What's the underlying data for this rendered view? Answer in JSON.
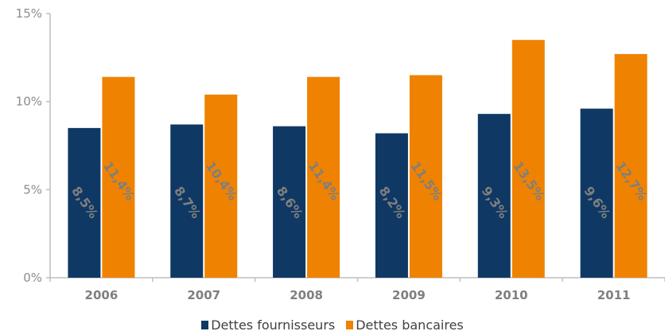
{
  "chart_data": {
    "type": "bar",
    "categories": [
      "2006",
      "2007",
      "2008",
      "2009",
      "2010",
      "2011"
    ],
    "series": [
      {
        "name": "Dettes fournisseurs",
        "values": [
          8.5,
          8.7,
          8.6,
          8.2,
          9.3,
          9.6
        ],
        "labels": [
          "8,5%",
          "8,7%",
          "8,6%",
          "8,2%",
          "9,3%",
          "9,6%"
        ],
        "color": "#0f3864"
      },
      {
        "name": "Dettes bancaires",
        "values": [
          11.4,
          10.4,
          11.4,
          11.5,
          13.5,
          12.7
        ],
        "labels": [
          "11,4%",
          "10,4%",
          "11,4%",
          "11,5%",
          "13,5%",
          "12,7%"
        ],
        "color": "#ef8200"
      }
    ],
    "y_ticks": [
      {
        "value": 0,
        "label": "0%"
      },
      {
        "value": 5,
        "label": "5%"
      },
      {
        "value": 10,
        "label": "10%"
      },
      {
        "value": 15,
        "label": "15%"
      }
    ],
    "ylim": [
      0,
      15
    ],
    "grid": false,
    "legend_position": "bottom"
  }
}
